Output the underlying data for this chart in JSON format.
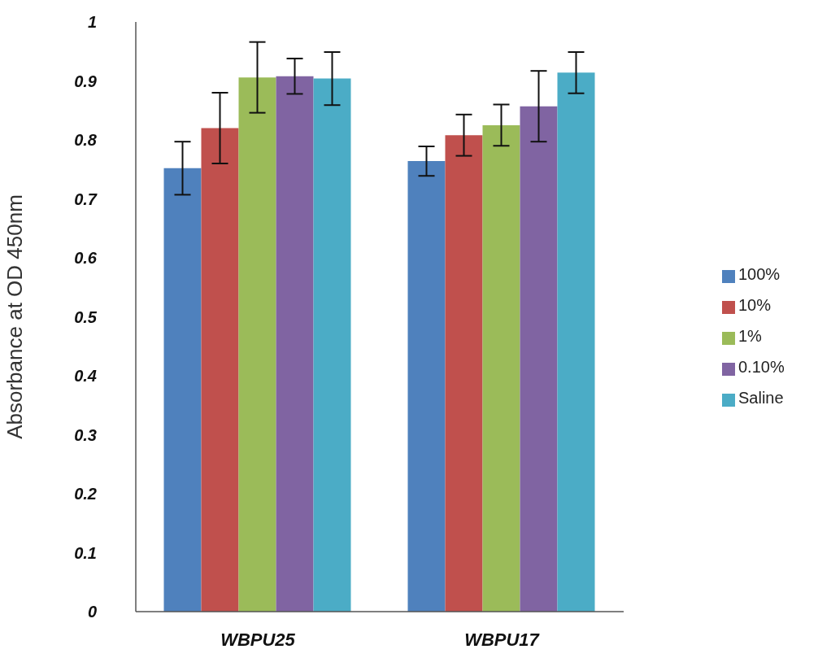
{
  "chart_data": {
    "type": "bar",
    "ylabel": "Absorbance at OD 450nm",
    "categories": [
      "WBPU25",
      "WBPU17"
    ],
    "series": [
      {
        "name": "100%",
        "color": "#4f81bd",
        "values": [
          0.752,
          0.764
        ],
        "errors": [
          0.045,
          0.025
        ]
      },
      {
        "name": "10%",
        "color": "#c0504d",
        "values": [
          0.82,
          0.808
        ],
        "errors": [
          0.06,
          0.035
        ]
      },
      {
        "name": "1%",
        "color": "#9bbb59",
        "values": [
          0.906,
          0.825
        ],
        "errors": [
          0.06,
          0.035
        ]
      },
      {
        "name": "0.10%",
        "color": "#8064a2",
        "values": [
          0.908,
          0.857
        ],
        "errors": [
          0.03,
          0.06
        ]
      },
      {
        "name": "Saline",
        "color": "#4bacc6",
        "values": [
          0.904,
          0.914
        ],
        "errors": [
          0.045,
          0.035
        ]
      }
    ],
    "ylim": [
      0,
      1
    ],
    "yticks": [
      0,
      0.1,
      0.2,
      0.3,
      0.4,
      0.5,
      0.6,
      0.7,
      0.8,
      0.9,
      1
    ],
    "grid": false,
    "legend": "right"
  }
}
